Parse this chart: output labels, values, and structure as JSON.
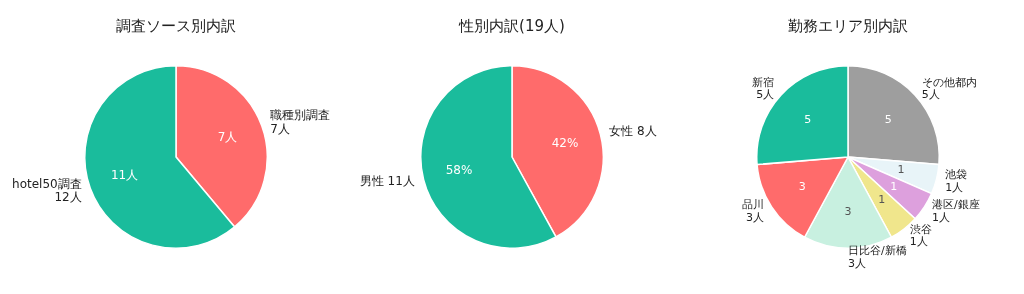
{
  "chart_data": [
    {
      "type": "pie",
      "title": "調査ソース別内訳",
      "categories": [
        "職種別調査\n7人",
        "hotel50調査\n12人"
      ],
      "values": [
        7,
        11
      ],
      "colors": [
        "#ff6b6b",
        "#1abc9c"
      ],
      "value_labels": [
        "7人",
        "11人"
      ]
    },
    {
      "type": "pie",
      "title": "性別内訳(19人)",
      "categories": [
        "女性 8人",
        "男性 11人"
      ],
      "values": [
        42,
        58
      ],
      "colors": [
        "#ff6b6b",
        "#1abc9c"
      ],
      "value_labels": [
        "42%",
        "58%"
      ]
    },
    {
      "type": "pie",
      "title": "勤務エリア別内訳",
      "categories": [
        "その他都内\n5人",
        "池袋\n1人",
        "港区/銀座\n1人",
        "渋谷\n1人",
        "日比谷/新橋\n3人",
        "品川\n3人",
        "新宿\n5人"
      ],
      "values": [
        5,
        1,
        1,
        1,
        3,
        3,
        5
      ],
      "colors": [
        "#9e9e9e",
        "#e8f4f8",
        "#dda0dd",
        "#f0e68c",
        "#c8f0e0",
        "#ff6b6b",
        "#1abc9c"
      ],
      "data_labels": true
    }
  ]
}
